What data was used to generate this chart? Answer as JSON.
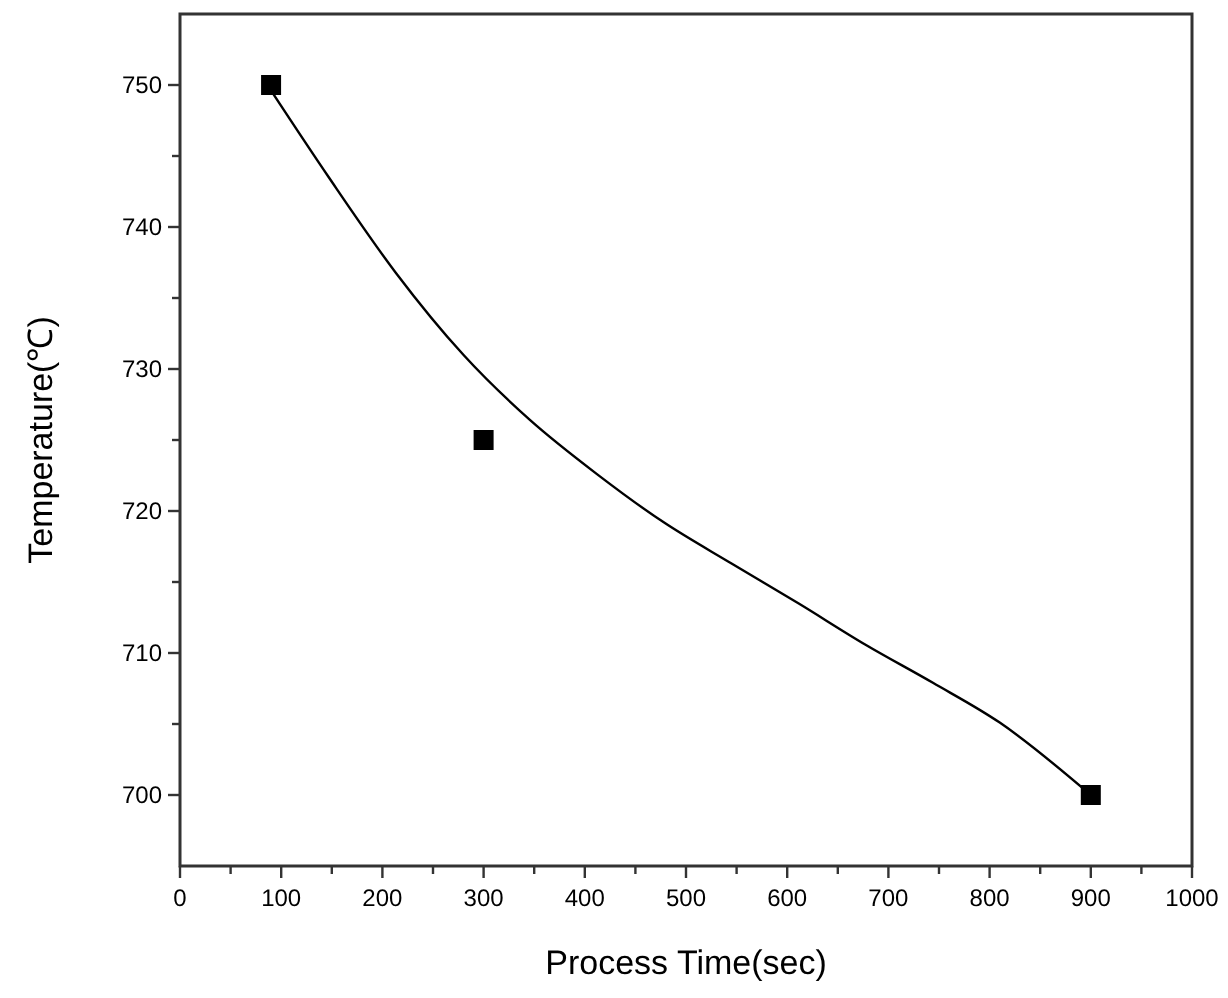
{
  "chart_data": {
    "type": "scatter",
    "xlabel": "Process Time(sec)",
    "ylabel": "Temperature(℃)",
    "xlim": [
      0,
      1000
    ],
    "ylim": [
      695,
      755
    ],
    "xticks": [
      0,
      {
        "value": 50,
        "label": null
      },
      100,
      {
        "value": 150,
        "label": null
      },
      200,
      {
        "value": 250,
        "label": null
      },
      300,
      {
        "value": 350,
        "label": null
      },
      400,
      {
        "value": 450,
        "label": null
      },
      500,
      {
        "value": 550,
        "label": null
      },
      600,
      {
        "value": 650,
        "label": null
      },
      700,
      {
        "value": 750,
        "label": null
      },
      800,
      {
        "value": 850,
        "label": null
      },
      900,
      {
        "value": 950,
        "label": null
      },
      1000
    ],
    "yticks": [
      700,
      {
        "value": 705,
        "label": null
      },
      710,
      {
        "value": 715,
        "label": null
      },
      720,
      {
        "value": 725,
        "label": null
      },
      730,
      {
        "value": 735,
        "label": null
      },
      740,
      {
        "value": 745,
        "label": null
      },
      750
    ],
    "grid": false,
    "series": [
      {
        "color": "#000000",
        "marker": "square",
        "x": [
          90,
          300,
          900
        ],
        "values": [
          750,
          725,
          700
        ]
      },
      {
        "type": "line",
        "color": "#000000",
        "marker": "none",
        "line_style": "solid",
        "x": [
          90,
          147,
          213,
          280,
          346,
          412,
          478,
          545,
          611,
          677,
          744,
          810,
          900
        ],
        "values": [
          749.6,
          743.5,
          736.8,
          731,
          726.4,
          722.6,
          719.2,
          716.3,
          713.5,
          710.6,
          707.9,
          705.1,
          700
        ]
      }
    ]
  }
}
